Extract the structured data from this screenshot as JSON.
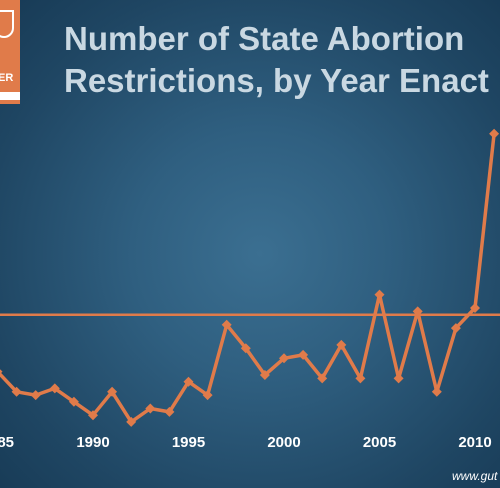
{
  "title_lines": [
    "Number of State Abortion",
    "Restrictions, by Year Enact"
  ],
  "logo": {
    "text": "ER"
  },
  "footer": {
    "url": "www.gut"
  },
  "colors": {
    "line": "#e07b4a",
    "reference": "#e07b4a",
    "text": "#ffffff",
    "title": "#c9d8e2"
  },
  "chart_data": {
    "type": "line",
    "title": "Number of State Abortion Restrictions, by Year Enact",
    "xlabel": "",
    "ylabel": "",
    "x_ticks": [
      "85",
      "1990",
      "1995",
      "2000",
      "2005",
      "2010"
    ],
    "x": [
      1985,
      1986,
      1987,
      1988,
      1989,
      1990,
      1991,
      1992,
      1993,
      1994,
      1995,
      1996,
      1997,
      1998,
      1999,
      2000,
      2001,
      2002,
      2003,
      2004,
      2005,
      2006,
      2007,
      2008,
      2009,
      2010,
      2011
    ],
    "series": [
      {
        "values": [
          21,
          15,
          14,
          16,
          12,
          8,
          15,
          6,
          10,
          9,
          18,
          14,
          35,
          28,
          20,
          25,
          26,
          19,
          29,
          19,
          44,
          19,
          39,
          15,
          34,
          40,
          92
        ]
      }
    ],
    "reference_line": 38,
    "grid": false,
    "legend": "none"
  }
}
